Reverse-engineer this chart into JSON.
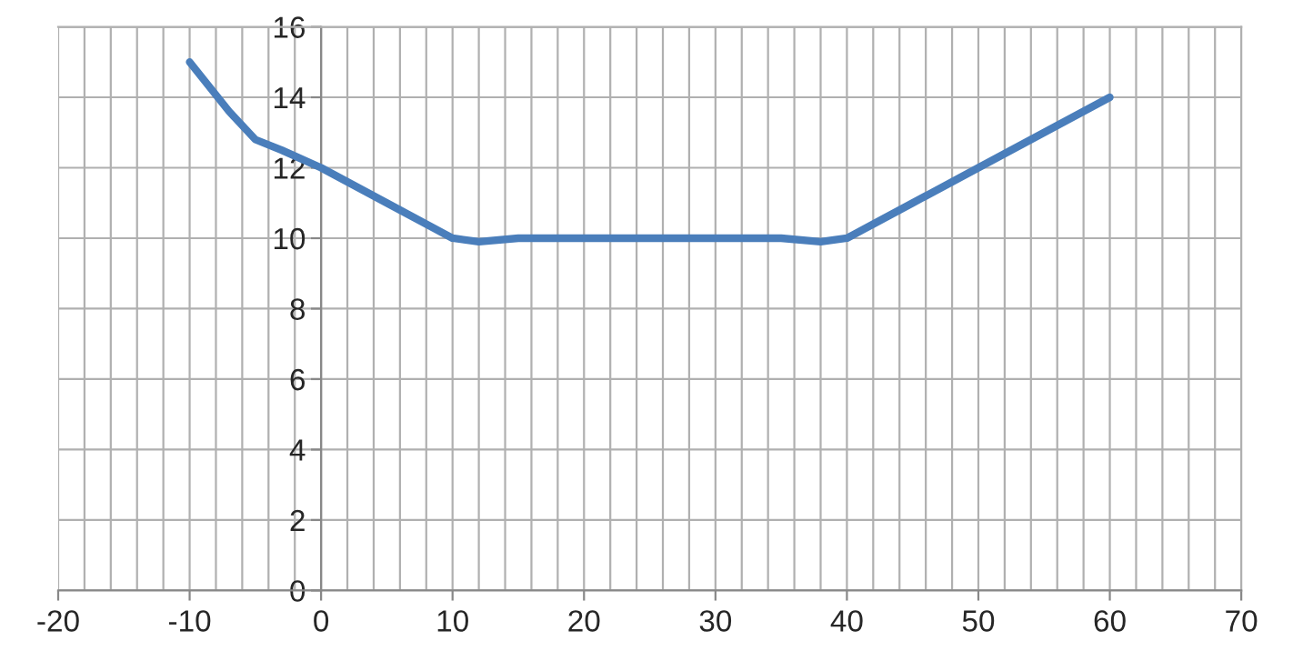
{
  "chart_data": {
    "type": "line",
    "x": [
      -10,
      -7,
      -5,
      -3,
      0,
      5,
      10,
      12,
      15,
      20,
      25,
      30,
      35,
      38,
      40,
      42,
      45,
      50,
      55,
      60
    ],
    "series": [
      {
        "color": "#4a7ebb",
        "values": [
          15,
          13.6,
          12.8,
          12.5,
          12,
          11,
          10,
          9.9,
          10,
          10,
          10,
          10,
          10,
          9.9,
          10,
          10.4,
          11,
          12,
          13,
          14
        ]
      }
    ],
    "xlim": [
      -20,
      70
    ],
    "xticks": [
      -20,
      -10,
      0,
      10,
      20,
      30,
      40,
      50,
      60,
      70
    ],
    "ylim": [
      0,
      16
    ],
    "yticks": [
      0,
      2,
      4,
      6,
      8,
      10,
      12,
      14,
      16
    ],
    "grid": true,
    "marker": "none",
    "line_style": "solid"
  }
}
